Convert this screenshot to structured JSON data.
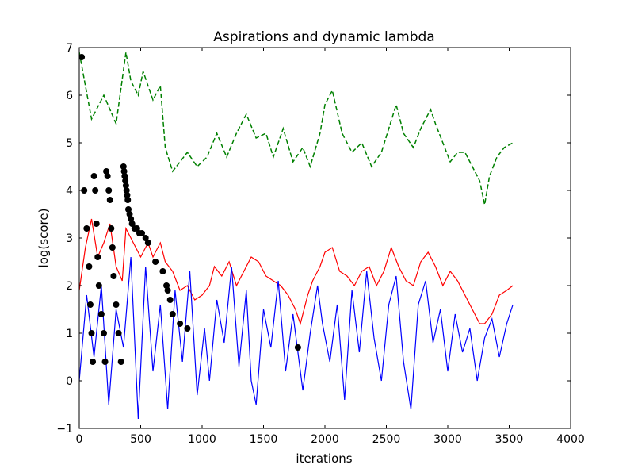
{
  "chart_data": {
    "type": "line",
    "title": "Aspirations and dynamic lambda",
    "xlabel": "iterations",
    "ylabel": "log(score)",
    "xlim": [
      0,
      4000
    ],
    "ylim": [
      -1,
      7
    ],
    "x_ticks": [
      "0",
      "500",
      "1000",
      "1500",
      "2000",
      "2500",
      "3000",
      "3500",
      "4000"
    ],
    "y_ticks": [
      "−1",
      "0",
      "1",
      "2",
      "3",
      "4",
      "5",
      "6",
      "7"
    ],
    "grid": false,
    "legend": "none",
    "series": [
      {
        "style": "dashed",
        "color": "#008000",
        "x": [
          0,
          100,
          200,
          300,
          380,
          420,
          480,
          520,
          600,
          660,
          700,
          760,
          820,
          880,
          960,
          1040,
          1120,
          1200,
          1280,
          1360,
          1440,
          1520,
          1580,
          1660,
          1740,
          1820,
          1880,
          1960,
          2000,
          2060,
          2140,
          2220,
          2300,
          2380,
          2460,
          2520,
          2580,
          2640,
          2720,
          2780,
          2860,
          2900,
          2960,
          3020,
          3080,
          3140,
          3200,
          3260,
          3300,
          3340,
          3400,
          3460,
          3530
        ],
        "y": [
          6.9,
          5.5,
          6.0,
          5.4,
          6.9,
          6.3,
          6.0,
          6.5,
          5.9,
          6.2,
          4.9,
          4.4,
          4.6,
          4.8,
          4.5,
          4.7,
          5.2,
          4.7,
          5.2,
          5.6,
          5.1,
          5.2,
          4.7,
          5.3,
          4.6,
          4.9,
          4.5,
          5.2,
          5.8,
          6.1,
          5.2,
          4.8,
          5.0,
          4.5,
          4.8,
          5.3,
          5.8,
          5.2,
          4.9,
          5.3,
          5.7,
          5.4,
          5.0,
          4.6,
          4.8,
          4.8,
          4.5,
          4.2,
          3.7,
          4.3,
          4.7,
          4.9,
          5.0
        ]
      },
      {
        "style": "solid",
        "color": "#ff0000",
        "x": [
          0,
          50,
          100,
          150,
          200,
          250,
          300,
          350,
          380,
          420,
          460,
          500,
          560,
          600,
          660,
          700,
          760,
          820,
          880,
          940,
          1000,
          1060,
          1100,
          1160,
          1220,
          1280,
          1340,
          1400,
          1460,
          1520,
          1580,
          1640,
          1700,
          1760,
          1800,
          1860,
          1900,
          1960,
          2000,
          2060,
          2120,
          2180,
          2240,
          2300,
          2360,
          2420,
          2480,
          2540,
          2600,
          2660,
          2720,
          2780,
          2840,
          2900,
          2960,
          3020,
          3080,
          3140,
          3200,
          3260,
          3300,
          3360,
          3420,
          3480,
          3530
        ],
        "y": [
          1.9,
          2.8,
          3.4,
          2.6,
          2.9,
          3.3,
          2.4,
          2.1,
          3.2,
          3.0,
          2.8,
          2.6,
          2.9,
          2.6,
          2.9,
          2.5,
          2.3,
          1.9,
          2.0,
          1.7,
          1.8,
          2.0,
          2.4,
          2.2,
          2.5,
          2.0,
          2.3,
          2.6,
          2.5,
          2.2,
          2.1,
          2.0,
          1.8,
          1.5,
          1.2,
          1.8,
          2.1,
          2.4,
          2.7,
          2.8,
          2.3,
          2.2,
          2.0,
          2.3,
          2.4,
          2.0,
          2.3,
          2.8,
          2.4,
          2.1,
          2.0,
          2.5,
          2.7,
          2.4,
          2.0,
          2.3,
          2.1,
          1.8,
          1.5,
          1.2,
          1.2,
          1.4,
          1.8,
          1.9,
          2.0
        ]
      },
      {
        "style": "solid",
        "color": "#0000ff",
        "x": [
          0,
          60,
          120,
          180,
          240,
          300,
          360,
          420,
          480,
          540,
          600,
          660,
          720,
          780,
          840,
          900,
          960,
          1020,
          1060,
          1120,
          1180,
          1240,
          1300,
          1360,
          1400,
          1440,
          1500,
          1560,
          1620,
          1680,
          1740,
          1780,
          1820,
          1880,
          1940,
          1980,
          2040,
          2100,
          2160,
          2220,
          2280,
          2340,
          2400,
          2460,
          2520,
          2580,
          2640,
          2700,
          2760,
          2820,
          2880,
          2940,
          3000,
          3060,
          3120,
          3180,
          3240,
          3300,
          3360,
          3420,
          3480,
          3530
        ],
        "y": [
          0.0,
          1.8,
          0.5,
          2.0,
          -0.5,
          1.5,
          0.7,
          2.6,
          -0.8,
          2.4,
          0.2,
          1.6,
          -0.6,
          1.9,
          0.4,
          2.3,
          -0.3,
          1.1,
          0.0,
          1.7,
          0.8,
          2.4,
          0.3,
          1.9,
          0.0,
          -0.5,
          1.5,
          0.7,
          2.1,
          0.2,
          1.4,
          0.6,
          -0.2,
          1.0,
          2.0,
          1.2,
          0.4,
          1.6,
          -0.4,
          1.9,
          0.6,
          2.3,
          0.9,
          0.0,
          1.6,
          2.2,
          0.4,
          -0.6,
          1.6,
          2.1,
          0.8,
          1.5,
          0.2,
          1.4,
          0.6,
          1.1,
          0.0,
          0.9,
          1.3,
          0.5,
          1.2,
          1.6
        ]
      },
      {
        "style": "markers",
        "color": "#000000",
        "x": [
          20,
          40,
          60,
          80,
          90,
          100,
          110,
          120,
          130,
          140,
          150,
          160,
          180,
          200,
          210,
          220,
          230,
          240,
          250,
          260,
          270,
          280,
          300,
          320,
          340,
          360,
          365,
          370,
          375,
          380,
          385,
          390,
          395,
          400,
          410,
          420,
          430,
          450,
          470,
          490,
          510,
          540,
          560,
          620,
          680,
          710,
          720,
          740,
          760,
          820,
          880,
          1780
        ],
        "y": [
          6.8,
          4.0,
          3.2,
          2.4,
          1.6,
          1.0,
          0.4,
          4.3,
          4.0,
          3.3,
          2.6,
          2.0,
          1.4,
          1.0,
          0.4,
          4.4,
          4.3,
          4.0,
          3.8,
          3.2,
          2.8,
          2.2,
          1.6,
          1.0,
          0.4,
          4.5,
          4.4,
          4.3,
          4.2,
          4.1,
          4.0,
          3.9,
          3.8,
          3.6,
          3.5,
          3.4,
          3.3,
          3.2,
          3.2,
          3.1,
          3.1,
          3.0,
          2.9,
          2.5,
          2.3,
          2.0,
          1.9,
          1.7,
          1.4,
          1.2,
          1.1,
          0.7
        ]
      }
    ]
  }
}
